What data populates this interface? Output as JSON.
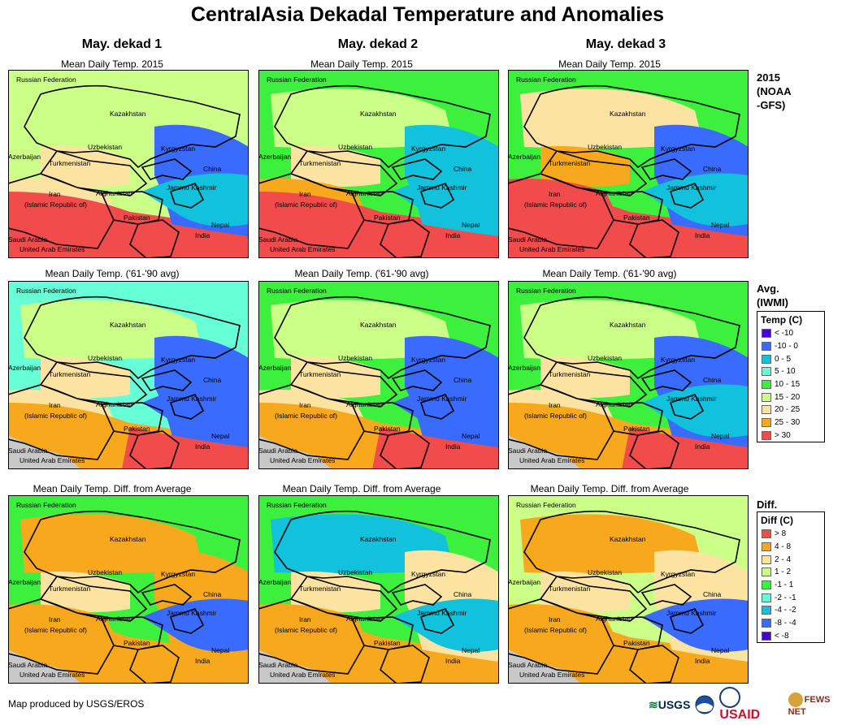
{
  "title": "CentralAsia Dekadal Temperature and Anomalies",
  "columns": [
    "May. dekad 1",
    "May. dekad 2",
    "May. dekad 3"
  ],
  "rows": [
    {
      "subtitle": "Mean Daily Temp. 2015",
      "label": "2015\n(NOAA\n-GFS)"
    },
    {
      "subtitle": "Mean Daily Temp. ('61-'90 avg)",
      "label": "Avg.\n(IWMI)"
    },
    {
      "subtitle": "Mean Daily Temp. Diff. from Average",
      "label": "Diff."
    }
  ],
  "place_labels": {
    "russia": "Russian Federation",
    "kazakhstan": "Kazakhstan",
    "uzbekistan": "Uzbekistan",
    "kyrgyzstan": "Kyrgyzstan",
    "azerbaijan": "Azerbaijan",
    "turkmenistan": "Turkmenistan",
    "china": "China",
    "afghanistan": "Afghanistan",
    "iran": "Iran",
    "iran2": "(Islamic Republic of)",
    "kashmir": "Jammu Kashmir",
    "pakistan": "Pakistan",
    "nepal": "Nepal",
    "india": "India",
    "saudi": "Saudi Arabia",
    "uae": "United Arab Emirates"
  },
  "temp_legend": {
    "title": "Temp (C)",
    "items": [
      {
        "label": "< -10",
        "color": "#4b00d8"
      },
      {
        "label": "-10 - 0",
        "color": "#3a6bff"
      },
      {
        "label": "0 - 5",
        "color": "#12c1dc"
      },
      {
        "label": "5 - 10",
        "color": "#66ffd6"
      },
      {
        "label": "10 - 15",
        "color": "#3ef03e"
      },
      {
        "label": "15 - 20",
        "color": "#ccff88"
      },
      {
        "label": "20 - 25",
        "color": "#fce3a2"
      },
      {
        "label": "25 - 30",
        "color": "#f7a81c"
      },
      {
        "label": "> 30",
        "color": "#f24b4b"
      }
    ]
  },
  "diff_legend": {
    "title": "Diff (C)",
    "items": [
      {
        "label": "> 8",
        "color": "#f24b4b"
      },
      {
        "label": "4 - 8",
        "color": "#f7a81c"
      },
      {
        "label": "2 - 4",
        "color": "#fce3a2"
      },
      {
        "label": "1 - 2",
        "color": "#ccff88"
      },
      {
        "label": "-1 - 1",
        "color": "#3ef03e"
      },
      {
        "label": "-2 - -1",
        "color": "#66ffd6"
      },
      {
        "label": "-4 - -2",
        "color": "#12c1dc"
      },
      {
        "label": "-8 - -4",
        "color": "#3a6bff"
      },
      {
        "label": "< -8",
        "color": "#4b00d8"
      }
    ]
  },
  "footer": "Map produced by USGS/EROS",
  "logos": {
    "usgs": "USGS",
    "noaa": "NOAA",
    "usaid": "USAID",
    "fewsnet": "FEWS NET"
  }
}
